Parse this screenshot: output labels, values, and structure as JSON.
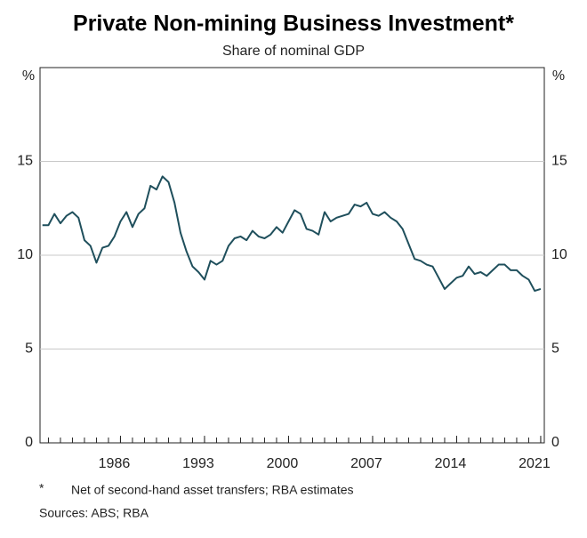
{
  "chart_data": {
    "type": "line",
    "title": "Private Non-mining Business Investment*",
    "subtitle": "Share of nominal GDP",
    "y_unit_left": "%",
    "y_unit_right": "%",
    "footnote_marker": "*",
    "footnote": "Net of second-hand asset transfers; RBA estimates",
    "sources": "Sources: ABS; RBA",
    "grid": true,
    "x": [
      1979.5,
      1980,
      1980.5,
      1981,
      1981.5,
      1982,
      1982.5,
      1983,
      1983.5,
      1984,
      1984.5,
      1985,
      1985.5,
      1986,
      1986.5,
      1987,
      1987.5,
      1988,
      1988.5,
      1989,
      1989.5,
      1990,
      1990.5,
      1991,
      1991.5,
      1992,
      1992.5,
      1993,
      1993.5,
      1994,
      1994.5,
      1995,
      1995.5,
      1996,
      1996.5,
      1997,
      1997.5,
      1998,
      1998.5,
      1999,
      1999.5,
      2000,
      2000.5,
      2001,
      2001.5,
      2002,
      2002.5,
      2003,
      2003.5,
      2004,
      2004.5,
      2005,
      2005.5,
      2006,
      2006.5,
      2007,
      2007.5,
      2008,
      2008.5,
      2009,
      2009.5,
      2010,
      2010.5,
      2011,
      2011.5,
      2012,
      2012.5,
      2013,
      2013.5,
      2014,
      2014.5,
      2015,
      2015.5,
      2016,
      2016.5,
      2017,
      2017.5,
      2018,
      2018.5,
      2019,
      2019.5,
      2020,
      2020.5,
      2021
    ],
    "series": [
      {
        "color": "#1f4f5c",
        "values": [
          11.6,
          11.6,
          12.2,
          11.7,
          12.1,
          12.3,
          12.0,
          10.8,
          10.5,
          9.6,
          10.4,
          10.5,
          11.0,
          11.8,
          12.3,
          11.5,
          12.2,
          12.5,
          13.7,
          13.5,
          14.2,
          13.9,
          12.8,
          11.2,
          10.2,
          9.4,
          9.1,
          8.7,
          9.7,
          9.5,
          9.7,
          10.5,
          10.9,
          11.0,
          10.8,
          11.3,
          11.0,
          10.9,
          11.1,
          11.5,
          11.2,
          11.8,
          12.4,
          12.2,
          11.4,
          11.3,
          11.1,
          12.3,
          11.8,
          12.0,
          12.1,
          12.2,
          12.7,
          12.6,
          12.8,
          12.2,
          12.1,
          12.3,
          12.0,
          11.8,
          11.4,
          10.6,
          9.8,
          9.7,
          9.5,
          9.4,
          8.8,
          8.2,
          8.5,
          8.8,
          8.9,
          9.4,
          9.0,
          9.1,
          8.9,
          9.2,
          9.5,
          9.5,
          9.2,
          9.2,
          8.9,
          8.7,
          8.1,
          8.2
        ]
      }
    ],
    "xlim": [
      1979.3,
      2021.3
    ],
    "xticks": [
      1986,
      1993,
      2000,
      2007,
      2014,
      2021
    ],
    "xminorticks": [
      1980,
      1981,
      1982,
      1983,
      1984,
      1985,
      1986,
      1987,
      1988,
      1989,
      1990,
      1991,
      1992,
      1993,
      1994,
      1995,
      1996,
      1997,
      1998,
      1999,
      2000,
      2001,
      2002,
      2003,
      2004,
      2005,
      2006,
      2007,
      2008,
      2009,
      2010,
      2011,
      2012,
      2013,
      2014,
      2015,
      2016,
      2017,
      2018,
      2019,
      2020,
      2021
    ],
    "ylim": [
      0,
      20
    ],
    "yticks": [
      0,
      5,
      10,
      15
    ]
  }
}
